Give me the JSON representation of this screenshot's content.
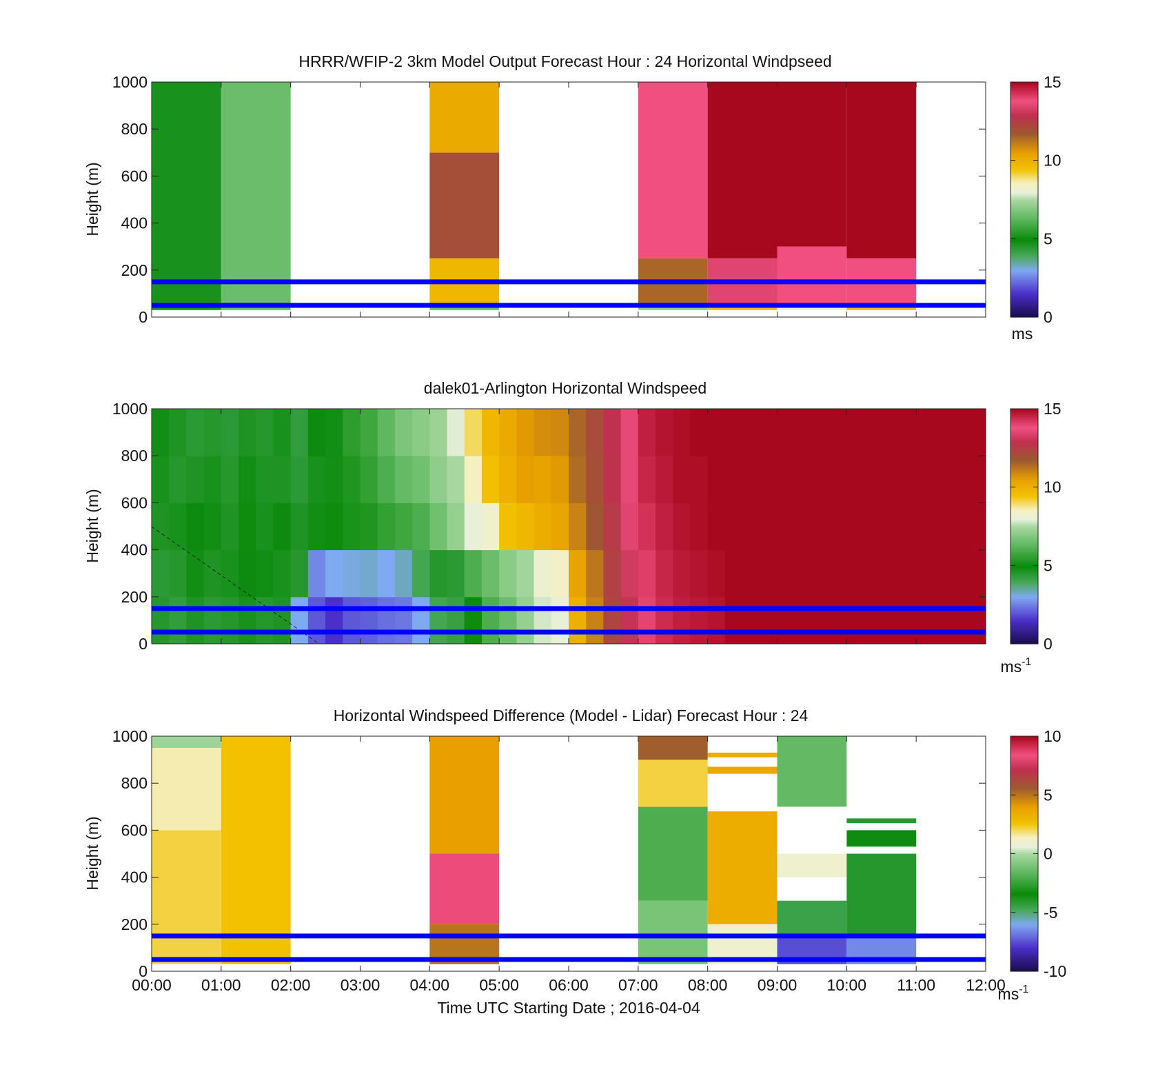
{
  "figure": {
    "xlabel": "Time UTC  Starting Date ; 2016-04-04",
    "x_ticks": [
      "00:00",
      "01:00",
      "02:00",
      "03:00",
      "04:00",
      "05:00",
      "06:00",
      "07:00",
      "08:00",
      "09:00",
      "10:00",
      "11:00",
      "12:00"
    ],
    "y_ticks": [
      "0",
      "200",
      "400",
      "600",
      "800",
      "1000"
    ],
    "ylabel": "Height (m)",
    "reference_lines_m": [
      50,
      150
    ],
    "reference_line_color": "#0000ff"
  },
  "colorbar_stops": [
    {
      "v": 0.0,
      "c": "#1a0a4a"
    },
    {
      "v": 0.1,
      "c": "#4b2fc9"
    },
    {
      "v": 0.2,
      "c": "#7fa9f0"
    },
    {
      "v": 0.26,
      "c": "#4aa85a"
    },
    {
      "v": 0.33,
      "c": "#0a8a0a"
    },
    {
      "v": 0.42,
      "c": "#5fb860"
    },
    {
      "v": 0.5,
      "c": "#a8d8a0"
    },
    {
      "v": 0.53,
      "c": "#e8f0dc"
    },
    {
      "v": 0.57,
      "c": "#f5f0c0"
    },
    {
      "v": 0.63,
      "c": "#f2c200"
    },
    {
      "v": 0.7,
      "c": "#e8a000"
    },
    {
      "v": 0.78,
      "c": "#9c5a30"
    },
    {
      "v": 0.86,
      "c": "#c03050"
    },
    {
      "v": 0.92,
      "c": "#f05080"
    },
    {
      "v": 1.0,
      "c": "#a8081e"
    }
  ],
  "chart_data": [
    {
      "type": "heatmap",
      "title": "HRRR/WFIP-2 3km Model Output   Forecast Hour : 24 Horizontal Windpseed",
      "ylabel": "Height (m)",
      "ylim": [
        0,
        1000
      ],
      "xlim": [
        "00:00",
        "12:00"
      ],
      "colorbar": {
        "min": 0,
        "max": 15,
        "ticks": [
          "0",
          "5",
          "10",
          "15"
        ],
        "unit": "ms"
      },
      "columns": [
        {
          "start": "00:00",
          "end": "01:00",
          "blocks": [
            {
              "from": 30,
              "to": 1000,
              "value": 4.7
            }
          ]
        },
        {
          "start": "01:00",
          "end": "02:00",
          "blocks": [
            {
              "from": 30,
              "to": 1000,
              "value": 6.5
            }
          ]
        },
        {
          "start": "04:00",
          "end": "05:00",
          "blocks": [
            {
              "from": 30,
              "to": 60,
              "value": 6.5
            },
            {
              "from": 60,
              "to": 250,
              "value": 9.8
            },
            {
              "from": 250,
              "to": 700,
              "value": 12.0
            },
            {
              "from": 700,
              "to": 1000,
              "value": 10.2
            }
          ]
        },
        {
          "start": "07:00",
          "end": "08:00",
          "blocks": [
            {
              "from": 30,
              "to": 60,
              "value": 7.0
            },
            {
              "from": 60,
              "to": 250,
              "value": 11.5
            },
            {
              "from": 250,
              "to": 1000,
              "value": 13.8
            }
          ]
        },
        {
          "start": "08:00",
          "end": "09:00",
          "blocks": [
            {
              "from": 30,
              "to": 60,
              "value": 9.5
            },
            {
              "from": 60,
              "to": 250,
              "value": 13.5
            },
            {
              "from": 250,
              "to": 1000,
              "value": 15.0
            }
          ]
        },
        {
          "start": "09:00",
          "end": "10:00",
          "blocks": [
            {
              "from": 30,
              "to": 60,
              "value": 8.0
            },
            {
              "from": 60,
              "to": 300,
              "value": 13.8
            },
            {
              "from": 300,
              "to": 1000,
              "value": 15.0
            }
          ]
        },
        {
          "start": "10:00",
          "end": "11:00",
          "blocks": [
            {
              "from": 30,
              "to": 60,
              "value": 9.5
            },
            {
              "from": 60,
              "to": 250,
              "value": 13.8
            },
            {
              "from": 250,
              "to": 1000,
              "value": 15.0
            }
          ]
        }
      ]
    },
    {
      "type": "heatmap",
      "title": "dalek01-Arlington  Horizontal Windspeed",
      "ylabel": "Height (m)",
      "ylim": [
        0,
        1000
      ],
      "xlim": [
        "00:00",
        "12:00"
      ],
      "colorbar": {
        "min": 0,
        "max": 15,
        "ticks": [
          "0",
          "5",
          "10",
          "15"
        ],
        "unit": "ms",
        "unit_exp": "-1"
      },
      "time_bins": [
        "00:00",
        "00:15",
        "00:30",
        "00:45",
        "01:00",
        "01:15",
        "01:30",
        "01:45",
        "02:00",
        "02:15",
        "02:30",
        "02:45",
        "03:00",
        "03:15",
        "03:30",
        "03:45",
        "04:00",
        "04:15",
        "04:30",
        "04:45",
        "05:00",
        "05:15",
        "05:30",
        "05:45",
        "06:00",
        "06:15",
        "06:30",
        "06:45",
        "07:00",
        "07:15",
        "07:30",
        "07:45",
        "08:00",
        "08:15",
        "08:30",
        "08:45",
        "09:00",
        "09:15",
        "09:30",
        "09:45",
        "10:00",
        "10:15",
        "10:30",
        "10:45",
        "11:00",
        "11:15",
        "11:30",
        "11:45"
      ],
      "height_bins_m": [
        0,
        200,
        400,
        600,
        800
      ],
      "values": [
        [
          4.5,
          4.4,
          4.6,
          4.7,
          4.8
        ],
        [
          4.3,
          4.5,
          4.7,
          4.5,
          4.6
        ],
        [
          4.6,
          4.8,
          4.9,
          4.6,
          4.4
        ],
        [
          4.4,
          4.6,
          4.8,
          4.7,
          4.5
        ],
        [
          4.5,
          4.7,
          4.6,
          4.5,
          4.4
        ],
        [
          4.7,
          4.9,
          5.0,
          4.8,
          4.6
        ],
        [
          4.5,
          4.8,
          4.7,
          4.6,
          4.5
        ],
        [
          4.6,
          4.7,
          4.9,
          4.6,
          4.7
        ],
        [
          3.0,
          4.5,
          4.6,
          4.4,
          4.3
        ],
        [
          2.0,
          2.6,
          4.8,
          4.7,
          4.9
        ],
        [
          1.5,
          3.0,
          5.0,
          5.1,
          4.8
        ],
        [
          2.0,
          3.1,
          5.2,
          5.3,
          5.5
        ],
        [
          2.1,
          3.2,
          5.3,
          5.6,
          5.8
        ],
        [
          2.3,
          3.0,
          5.6,
          6.0,
          6.3
        ],
        [
          2.4,
          3.3,
          5.8,
          6.4,
          6.8
        ],
        [
          3.0,
          4.0,
          6.0,
          6.6,
          7.0
        ],
        [
          4.0,
          4.5,
          6.6,
          7.1,
          7.3
        ],
        [
          4.2,
          4.4,
          7.2,
          7.5,
          7.9
        ],
        [
          5.0,
          6.0,
          8.0,
          8.5,
          9.0
        ],
        [
          6.0,
          6.5,
          8.3,
          9.5,
          9.8
        ],
        [
          6.5,
          7.0,
          9.5,
          10.0,
          10.2
        ],
        [
          7.2,
          7.4,
          9.8,
          10.5,
          10.6
        ],
        [
          7.8,
          8.2,
          10.1,
          10.4,
          10.8
        ],
        [
          8.0,
          8.4,
          10.3,
          10.6,
          10.9
        ],
        [
          10.0,
          10.4,
          11.0,
          11.4,
          11.5
        ],
        [
          11.0,
          11.2,
          11.8,
          12.0,
          12.1
        ],
        [
          12.3,
          12.4,
          12.6,
          12.8,
          12.9
        ],
        [
          13.0,
          13.2,
          13.5,
          13.6,
          13.6
        ],
        [
          14.0,
          14.1,
          14.3,
          14.5,
          14.6
        ],
        [
          14.4,
          14.5,
          14.6,
          14.7,
          14.8
        ],
        [
          14.6,
          14.7,
          14.8,
          14.9,
          14.9
        ],
        [
          14.7,
          14.8,
          14.9,
          14.9,
          15.0
        ],
        [
          14.8,
          14.9,
          15.0,
          15.0,
          15.0
        ],
        [
          15.0,
          15.0,
          15.0,
          15.0,
          15.0
        ],
        [
          15.0,
          15.0,
          15.0,
          15.0,
          15.0
        ],
        [
          15.0,
          15.0,
          15.0,
          15.0,
          15.0
        ],
        [
          15.0,
          15.0,
          15.0,
          15.0,
          15.0
        ],
        [
          15.0,
          15.0,
          15.0,
          15.0,
          15.0
        ],
        [
          15.0,
          15.0,
          15.0,
          15.0,
          15.0
        ],
        [
          15.0,
          15.0,
          15.0,
          15.0,
          15.0
        ],
        [
          15.0,
          15.0,
          15.0,
          15.0,
          15.0
        ],
        [
          15.0,
          15.0,
          15.0,
          15.0,
          15.0
        ],
        [
          15.0,
          15.0,
          15.0,
          15.0,
          15.0
        ],
        [
          15.0,
          15.0,
          15.0,
          15.0,
          15.0
        ],
        [
          15.0,
          15.0,
          15.0,
          15.0,
          15.0
        ],
        [
          15.0,
          15.0,
          15.0,
          15.0,
          15.0
        ],
        [
          15.0,
          15.0,
          15.0,
          15.0,
          15.0
        ],
        [
          15.0,
          15.0,
          15.0,
          15.0,
          15.0
        ]
      ]
    },
    {
      "type": "heatmap",
      "title": "Horizontal Windspeed Difference (Model - Lidar) Forecast Hour : 24",
      "ylabel": "Height (m)",
      "ylim": [
        0,
        1000
      ],
      "xlim": [
        "00:00",
        "12:00"
      ],
      "colorbar": {
        "min": -10,
        "max": 10,
        "ticks": [
          "-10",
          "-5",
          "0",
          "5",
          "10"
        ],
        "unit": "ms",
        "unit_exp": "-1"
      },
      "columns": [
        {
          "start": "00:00",
          "end": "01:00",
          "blocks": [
            {
              "from": 30,
              "to": 600,
              "value": 2.2
            },
            {
              "from": 600,
              "to": 950,
              "value": 1.5
            },
            {
              "from": 950,
              "to": 1000,
              "value": -0.2
            }
          ]
        },
        {
          "start": "01:00",
          "end": "02:00",
          "blocks": [
            {
              "from": 30,
              "to": 1000,
              "value": 2.6
            }
          ]
        },
        {
          "start": "04:00",
          "end": "05:00",
          "blocks": [
            {
              "from": 30,
              "to": 200,
              "value": 5.0
            },
            {
              "from": 200,
              "to": 500,
              "value": 8.5
            },
            {
              "from": 500,
              "to": 1000,
              "value": 4.0
            }
          ]
        },
        {
          "start": "07:00",
          "end": "08:00",
          "blocks": [
            {
              "from": 30,
              "to": 300,
              "value": -1.0
            },
            {
              "from": 300,
              "to": 700,
              "value": -2.0
            },
            {
              "from": 700,
              "to": 900,
              "value": 2.2
            },
            {
              "from": 900,
              "to": 1000,
              "value": 5.5
            }
          ]
        },
        {
          "start": "08:00",
          "end": "09:00",
          "blocks": [
            {
              "from": 30,
              "to": 200,
              "value": 1.0
            },
            {
              "from": 200,
              "to": 680,
              "value": 3.5
            },
            {
              "from": 840,
              "to": 870,
              "value": 3.8
            },
            {
              "from": 910,
              "to": 930,
              "value": 3.5
            }
          ]
        },
        {
          "start": "09:00",
          "end": "10:00",
          "blocks": [
            {
              "from": 30,
              "to": 150,
              "value": -7.5
            },
            {
              "from": 150,
              "to": 300,
              "value": -4.5
            },
            {
              "from": 400,
              "to": 500,
              "value": 1.0
            },
            {
              "from": 700,
              "to": 1000,
              "value": -1.5
            }
          ]
        },
        {
          "start": "10:00",
          "end": "11:00",
          "blocks": [
            {
              "from": 30,
              "to": 150,
              "value": -6.5
            },
            {
              "from": 150,
              "to": 500,
              "value": -4.0
            },
            {
              "from": 530,
              "to": 600,
              "value": -3.5
            },
            {
              "from": 630,
              "to": 650,
              "value": -4.0
            }
          ]
        }
      ]
    }
  ]
}
